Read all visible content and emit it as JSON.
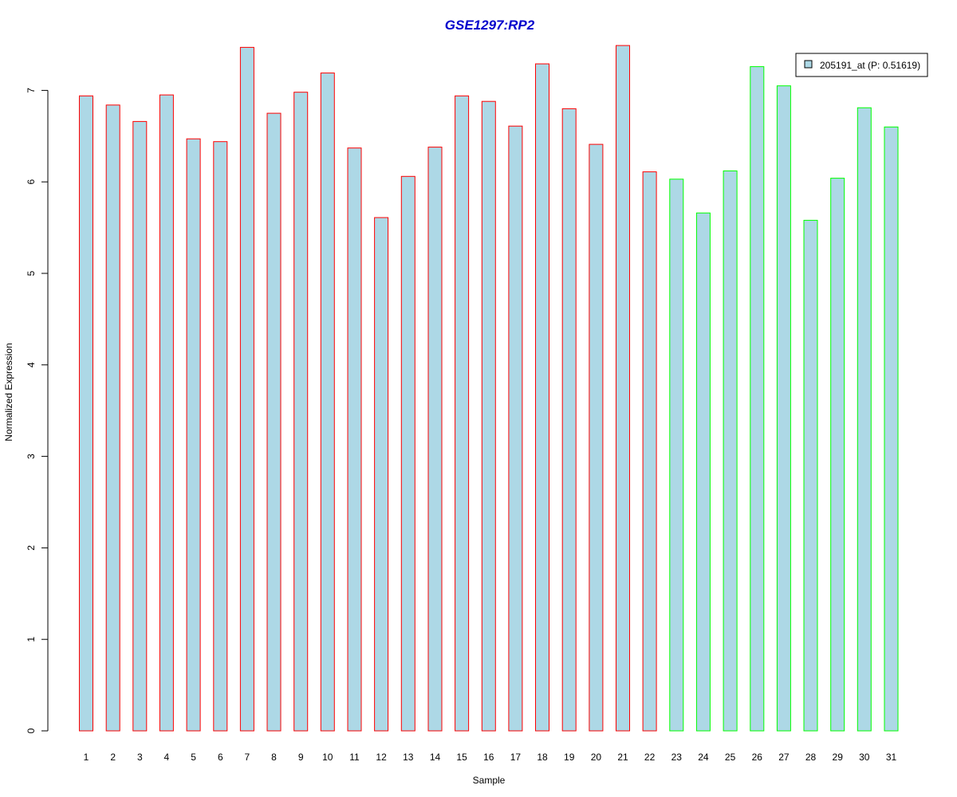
{
  "chart_data": {
    "type": "bar",
    "title": "GSE1297:RP2",
    "xlabel": "Sample",
    "ylabel": "Normalized Expression",
    "ylim": [
      0,
      7.5
    ],
    "yticks": [
      "0",
      "1",
      "2",
      "3",
      "4",
      "5",
      "6",
      "7"
    ],
    "grid": false,
    "legend_position": "top-right",
    "categories": [
      "1",
      "2",
      "3",
      "4",
      "5",
      "6",
      "7",
      "8",
      "9",
      "10",
      "11",
      "12",
      "13",
      "14",
      "15",
      "16",
      "17",
      "18",
      "19",
      "20",
      "21",
      "22",
      "23",
      "24",
      "25",
      "26",
      "27",
      "28",
      "29",
      "30",
      "31"
    ],
    "series": [
      {
        "name": "205191_at (P: 0.51619)",
        "values": [
          6.94,
          6.84,
          6.66,
          6.95,
          6.47,
          6.44,
          7.47,
          6.75,
          6.98,
          7.19,
          6.37,
          5.61,
          6.06,
          6.38,
          6.94,
          6.88,
          6.61,
          7.29,
          6.8,
          6.41,
          7.49,
          6.11,
          6.03,
          5.66,
          6.12,
          7.26,
          7.05,
          5.58,
          6.04,
          6.81,
          6.6
        ],
        "groups": [
          "red",
          "red",
          "red",
          "red",
          "red",
          "red",
          "red",
          "red",
          "red",
          "red",
          "red",
          "red",
          "red",
          "red",
          "red",
          "red",
          "red",
          "red",
          "red",
          "red",
          "red",
          "red",
          "green",
          "green",
          "green",
          "green",
          "green",
          "green",
          "green",
          "green",
          "green"
        ]
      }
    ],
    "colors": {
      "title": "#0000cc",
      "bar_fill": "#add8e6",
      "group_red_border": "#ff0000",
      "group_green_border": "#00ff00",
      "axis": "#000000"
    }
  }
}
